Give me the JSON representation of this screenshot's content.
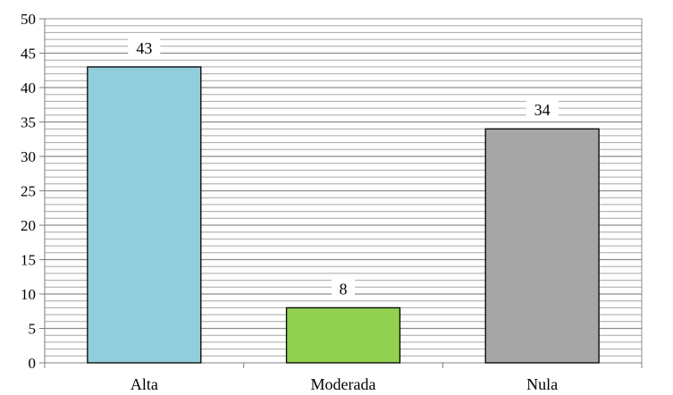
{
  "chart_data": {
    "type": "bar",
    "title": "",
    "xlabel": "",
    "ylabel": "",
    "categories": [
      "Alta",
      "Moderada",
      "Nula"
    ],
    "values": [
      43,
      8,
      34
    ],
    "colors": [
      "#92CDDC",
      "#92D050",
      "#A6A6A6"
    ],
    "ylim": [
      0,
      50
    ],
    "yticks": [
      0,
      5,
      10,
      15,
      20,
      25,
      30,
      35,
      40,
      45,
      50
    ],
    "grid": true,
    "minor_grid_step": 1,
    "legend": "none",
    "data_labels": true
  }
}
